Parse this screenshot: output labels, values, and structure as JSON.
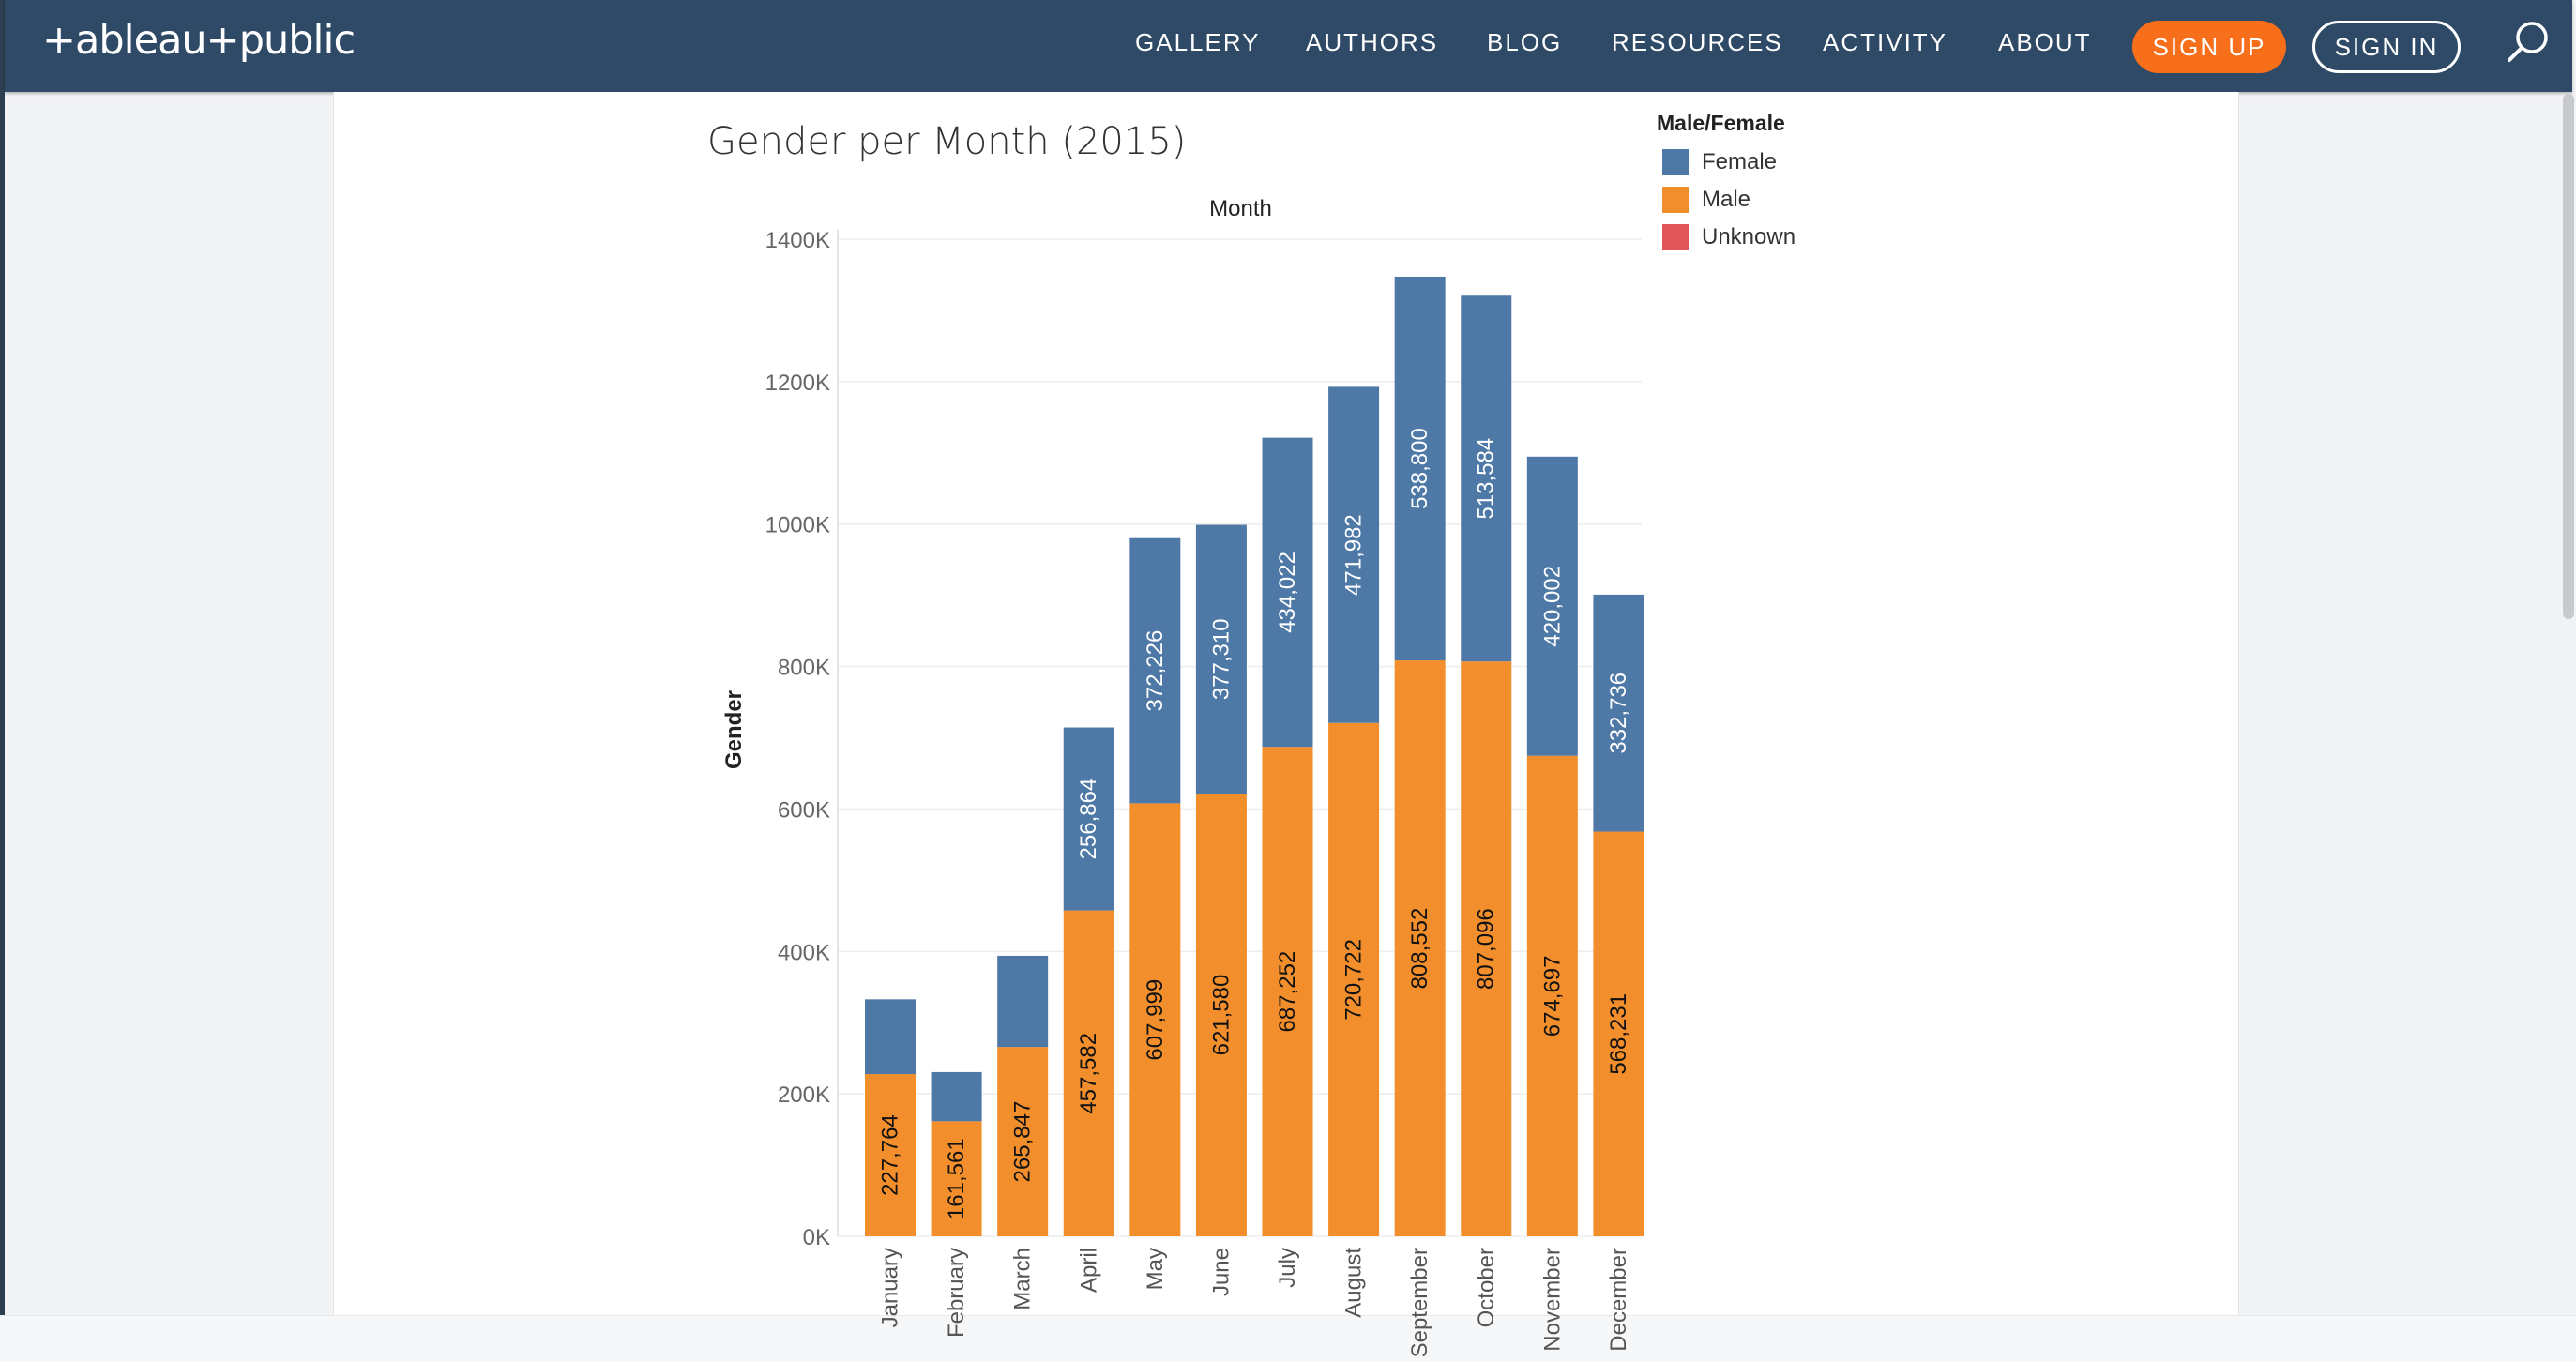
{
  "nav": {
    "logo": "+ableau+public",
    "links": [
      "GALLERY",
      "AUTHORS",
      "BLOG",
      "RESOURCES",
      "ACTIVITY",
      "ABOUT"
    ],
    "signup": "SIGN UP",
    "signin": "SIGN IN"
  },
  "colors": {
    "nav_bg": "#2e4a66",
    "female": "#4e79a7",
    "male": "#f28e2b",
    "unknown": "#e15759",
    "signup": "#f76e1b"
  },
  "chart_data": {
    "type": "bar",
    "stacked": true,
    "title": "Gender per Month (2015)",
    "xlabel": "Month",
    "ylabel": "Gender",
    "ylim": [
      0,
      1400000
    ],
    "yticks": [
      "0K",
      "200K",
      "400K",
      "600K",
      "800K",
      "1000K",
      "1200K",
      "1400K"
    ],
    "legend_title": "Male/Female",
    "legend_position": "top-right",
    "legend": [
      "Female",
      "Male",
      "Unknown"
    ],
    "categories": [
      "January",
      "February",
      "March",
      "April",
      "May",
      "June",
      "July",
      "August",
      "September",
      "October",
      "November",
      "December"
    ],
    "series": [
      {
        "name": "Male",
        "values": [
          227764,
          161561,
          265847,
          457582,
          607999,
          621580,
          687252,
          720722,
          808552,
          807096,
          674697,
          568231
        ]
      },
      {
        "name": "Female",
        "values": [
          105000,
          69000,
          128000,
          256864,
          372226,
          377310,
          434022,
          471982,
          538800,
          513584,
          420002,
          332736
        ]
      }
    ],
    "labels": {
      "Male": [
        "227,764",
        "161,561",
        "265,847",
        "457,582",
        "607,999",
        "621,580",
        "687,252",
        "720,722",
        "808,552",
        "807,096",
        "674,697",
        "568,231"
      ],
      "Female": [
        "",
        "",
        "",
        "256,864",
        "372,226",
        "377,310",
        "434,022",
        "471,982",
        "538,800",
        "513,584",
        "420,002",
        "332,736"
      ]
    },
    "grid": true
  }
}
